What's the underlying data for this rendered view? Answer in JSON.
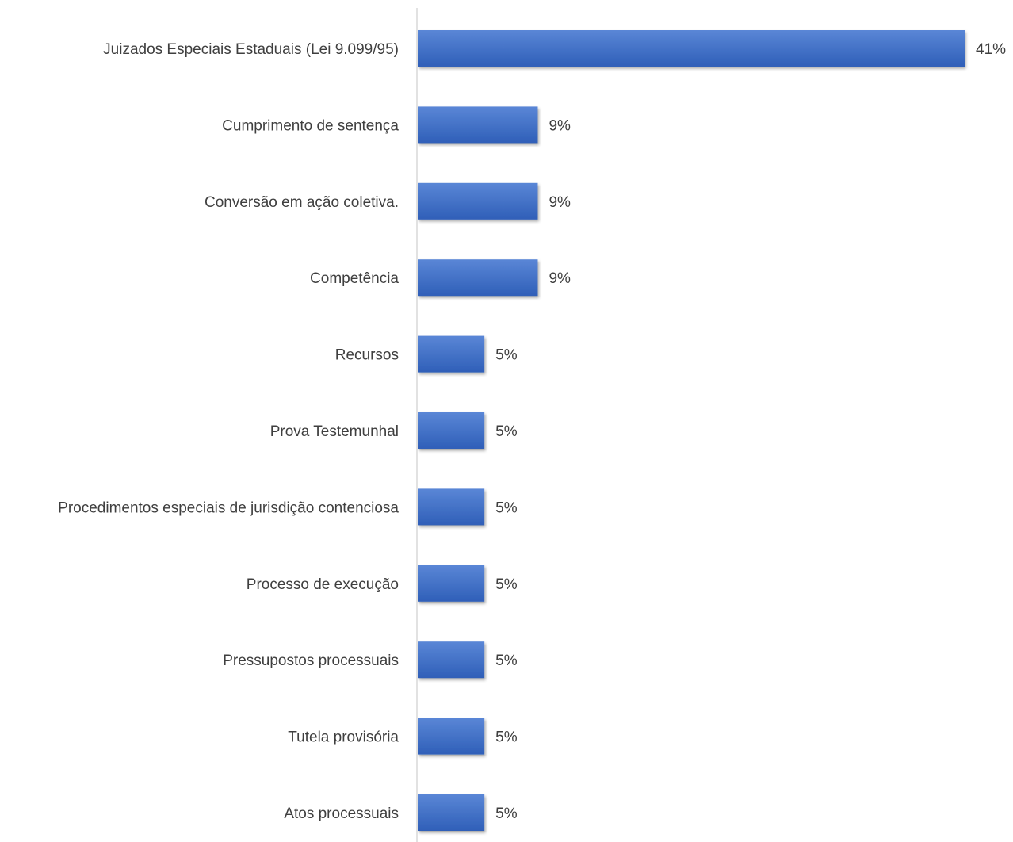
{
  "chart_data": {
    "type": "bar",
    "orientation": "horizontal",
    "categories": [
      "Juizados Especiais Estaduais (Lei 9.099/95)",
      "Cumprimento de sentença",
      "Conversão em ação coletiva.",
      "Competência",
      "Recursos",
      "Prova Testemunhal",
      "Procedimentos especiais de jurisdição contenciosa",
      "Processo de execução",
      "Pressupostos processuais",
      "Tutela provisória",
      "Atos processuais"
    ],
    "values": [
      41,
      9,
      9,
      9,
      5,
      5,
      5,
      5,
      5,
      5,
      5
    ],
    "value_labels": [
      "41%",
      "9%",
      "9%",
      "9%",
      "5%",
      "5%",
      "5%",
      "5%",
      "5%",
      "5%",
      "5%"
    ],
    "unit": "%",
    "title": "",
    "xlabel": "",
    "ylabel": "",
    "xlim": [
      0,
      41
    ],
    "grid": false,
    "legend": "none",
    "bar_color": "#4472c4"
  }
}
